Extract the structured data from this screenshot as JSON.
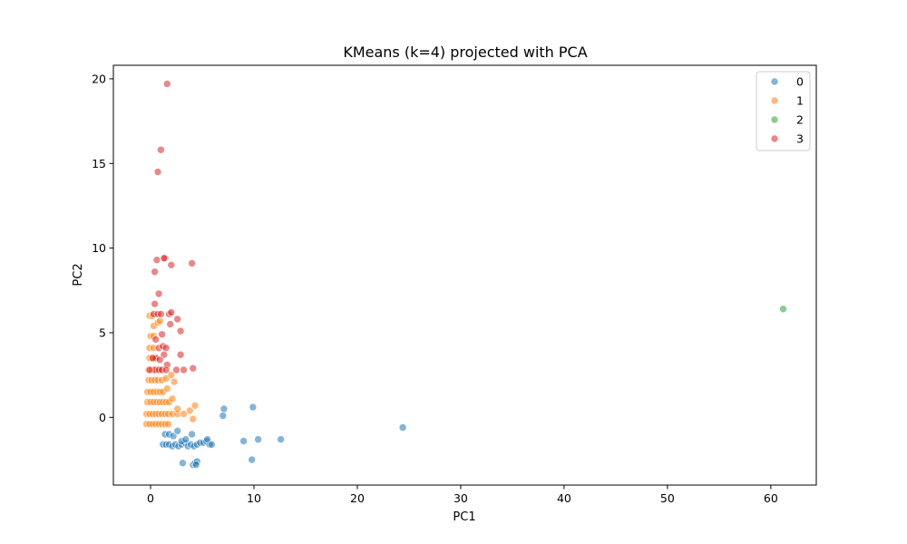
{
  "chart_data": {
    "type": "scatter",
    "title": "KMeans (k=4) projected with PCA",
    "xlabel": "PC1",
    "ylabel": "PC2",
    "xlim": [
      -3.6,
      64.4
    ],
    "ylim": [
      -4.0,
      20.8
    ],
    "xticks": [
      0,
      10,
      20,
      30,
      40,
      50,
      60
    ],
    "yticks": [
      0,
      5,
      10,
      15,
      20
    ],
    "grid": false,
    "legend_position": "top-right",
    "series": [
      {
        "name": "0",
        "color": "#1f77b4",
        "points": [
          [
            1.2,
            -1.6
          ],
          [
            1.5,
            -1.6
          ],
          [
            1.8,
            -1.6
          ],
          [
            2.1,
            -1.7
          ],
          [
            2.4,
            -1.6
          ],
          [
            2.7,
            -1.7
          ],
          [
            3.0,
            -1.6
          ],
          [
            3.3,
            -1.5
          ],
          [
            3.6,
            -1.7
          ],
          [
            3.9,
            -1.6
          ],
          [
            4.2,
            -1.7
          ],
          [
            4.5,
            -1.6
          ],
          [
            4.8,
            -1.5
          ],
          [
            5.1,
            -1.5
          ],
          [
            5.4,
            -1.4
          ],
          [
            5.7,
            -1.6
          ],
          [
            1.4,
            -1.0
          ],
          [
            1.8,
            -1.0
          ],
          [
            2.2,
            -1.1
          ],
          [
            2.6,
            -0.8
          ],
          [
            3.0,
            -1.4
          ],
          [
            3.4,
            -1.3
          ],
          [
            4.0,
            -1.0
          ],
          [
            5.5,
            -1.3
          ],
          [
            5.9,
            -1.6
          ],
          [
            3.1,
            -2.7
          ],
          [
            4.1,
            -2.8
          ],
          [
            4.3,
            -2.7
          ],
          [
            4.5,
            -2.6
          ],
          [
            4.4,
            -2.8
          ],
          [
            7.0,
            0.1
          ],
          [
            7.1,
            0.5
          ],
          [
            9.0,
            -1.4
          ],
          [
            9.8,
            -2.5
          ],
          [
            9.9,
            0.6
          ],
          [
            10.4,
            -1.3
          ],
          [
            12.6,
            -1.3
          ],
          [
            24.4,
            -0.6
          ]
        ]
      },
      {
        "name": "1",
        "color": "#ff7f0e",
        "points": [
          [
            -0.4,
            -0.4
          ],
          [
            -0.1,
            -0.4
          ],
          [
            0.2,
            -0.4
          ],
          [
            0.5,
            -0.4
          ],
          [
            0.8,
            -0.4
          ],
          [
            1.1,
            -0.4
          ],
          [
            1.4,
            -0.4
          ],
          [
            1.7,
            -0.4
          ],
          [
            -0.4,
            0.2
          ],
          [
            -0.1,
            0.2
          ],
          [
            0.2,
            0.2
          ],
          [
            0.5,
            0.2
          ],
          [
            0.8,
            0.2
          ],
          [
            1.1,
            0.2
          ],
          [
            1.4,
            0.2
          ],
          [
            1.7,
            0.2
          ],
          [
            2.1,
            0.2
          ],
          [
            2.6,
            0.2
          ],
          [
            3.2,
            0.2
          ],
          [
            -0.3,
            0.9
          ],
          [
            0.0,
            0.9
          ],
          [
            0.3,
            0.9
          ],
          [
            0.6,
            0.9
          ],
          [
            0.9,
            0.9
          ],
          [
            1.2,
            0.9
          ],
          [
            1.5,
            0.9
          ],
          [
            1.8,
            0.9
          ],
          [
            2.1,
            1.1
          ],
          [
            -0.3,
            1.5
          ],
          [
            0.0,
            1.5
          ],
          [
            0.3,
            1.5
          ],
          [
            0.6,
            1.5
          ],
          [
            0.9,
            1.5
          ],
          [
            1.2,
            1.5
          ],
          [
            1.6,
            1.7
          ],
          [
            -0.2,
            2.2
          ],
          [
            0.1,
            2.2
          ],
          [
            0.4,
            2.2
          ],
          [
            0.7,
            2.2
          ],
          [
            1.1,
            2.2
          ],
          [
            1.5,
            2.3
          ],
          [
            2.3,
            2.1
          ],
          [
            2.0,
            2.5
          ],
          [
            -0.2,
            2.8
          ],
          [
            0.1,
            2.8
          ],
          [
            0.5,
            2.8
          ],
          [
            0.9,
            2.8
          ],
          [
            -0.1,
            3.5
          ],
          [
            0.2,
            3.5
          ],
          [
            0.5,
            3.5
          ],
          [
            -0.1,
            4.1
          ],
          [
            0.3,
            4.1
          ],
          [
            0.0,
            4.8
          ],
          [
            0.3,
            4.8
          ],
          [
            0.3,
            5.4
          ],
          [
            0.7,
            5.6
          ],
          [
            0.9,
            5.7
          ],
          [
            -0.1,
            6.0
          ],
          [
            0.2,
            6.0
          ],
          [
            2.6,
            0.5
          ],
          [
            3.8,
            0.4
          ],
          [
            4.1,
            -0.1
          ],
          [
            4.3,
            0.7
          ]
        ]
      },
      {
        "name": "2",
        "color": "#2ca02c",
        "points": [
          [
            61.2,
            6.4
          ]
        ]
      },
      {
        "name": "3",
        "color": "#d62728",
        "points": [
          [
            1.6,
            19.7
          ],
          [
            1.0,
            15.8
          ],
          [
            0.7,
            14.5
          ],
          [
            1.4,
            9.4
          ],
          [
            1.3,
            9.4
          ],
          [
            0.6,
            9.3
          ],
          [
            4.0,
            9.1
          ],
          [
            2.0,
            9.0
          ],
          [
            0.4,
            8.6
          ],
          [
            0.8,
            7.3
          ],
          [
            0.4,
            6.7
          ],
          [
            0.3,
            6.1
          ],
          [
            0.7,
            6.1
          ],
          [
            1.0,
            6.1
          ],
          [
            1.8,
            6.1
          ],
          [
            2.0,
            6.2
          ],
          [
            2.6,
            5.8
          ],
          [
            1.9,
            5.5
          ],
          [
            2.9,
            5.1
          ],
          [
            1.1,
            4.9
          ],
          [
            0.5,
            4.6
          ],
          [
            0.8,
            4.1
          ],
          [
            1.2,
            4.2
          ],
          [
            1.5,
            4.1
          ],
          [
            2.9,
            3.7
          ],
          [
            1.3,
            3.7
          ],
          [
            0.5,
            3.5
          ],
          [
            0.9,
            3.4
          ],
          [
            0.2,
            3.5
          ],
          [
            1.6,
            3.1
          ],
          [
            0.4,
            2.8
          ],
          [
            0.8,
            2.8
          ],
          [
            1.1,
            2.8
          ],
          [
            1.5,
            2.8
          ],
          [
            2.5,
            2.8
          ],
          [
            3.2,
            2.8
          ],
          [
            4.1,
            2.9
          ],
          [
            -0.1,
            2.8
          ]
        ]
      }
    ]
  }
}
